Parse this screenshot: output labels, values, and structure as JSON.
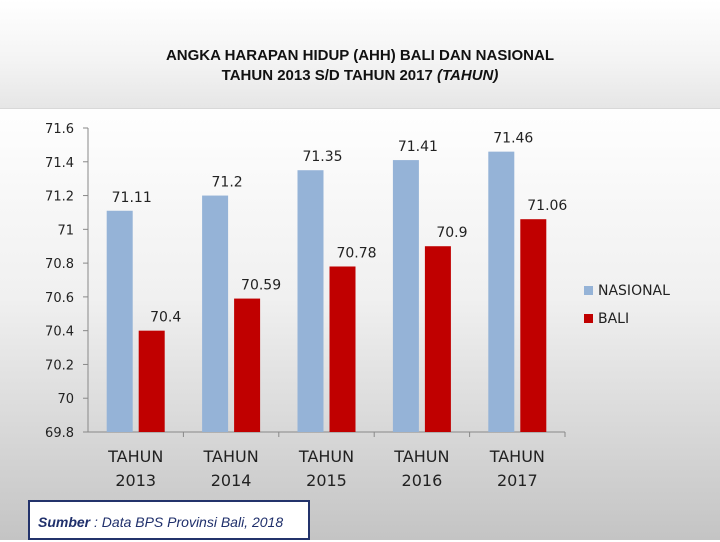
{
  "title": {
    "line1": "ANGKA HARAPAN HIDUP (AHH) BALI DAN NASIONAL",
    "line2_prefix": "TAHUN 2013 S/D TAHUN 2017 ",
    "line2_italic": "(TAHUN)"
  },
  "source": {
    "label": "Sumber",
    "text": " : Data BPS Provinsi Bali, 2018"
  },
  "colors": {
    "nasional": "#95b3d7",
    "bali": "#c00000",
    "axis": "#888888",
    "text": "#222222"
  },
  "chart_data": {
    "type": "bar",
    "categories": [
      [
        "TAHUN",
        "2013"
      ],
      [
        "TAHUN",
        "2014"
      ],
      [
        "TAHUN",
        "2015"
      ],
      [
        "TAHUN",
        "2016"
      ],
      [
        "TAHUN",
        "2017"
      ]
    ],
    "series": [
      {
        "name": "NASIONAL",
        "values": [
          71.11,
          71.2,
          71.35,
          71.41,
          71.46
        ],
        "labels": [
          "71.11",
          "71.2",
          "71.35",
          "71.41",
          "71.46"
        ]
      },
      {
        "name": "BALI",
        "values": [
          70.4,
          70.59,
          70.78,
          70.9,
          71.06
        ],
        "labels": [
          "70.4",
          "70.59",
          "70.78",
          "70.9",
          "71.06"
        ]
      }
    ],
    "ylim": [
      69.8,
      71.6
    ],
    "yticks": [
      71.6,
      71.4,
      71.2,
      71,
      70.8,
      70.6,
      70.4,
      70.2,
      70,
      69.8
    ],
    "ytick_labels": [
      "71.6",
      "71.4",
      "71.2",
      "71",
      "70.8",
      "70.6",
      "70.4",
      "70.2",
      "70",
      "69.8"
    ],
    "legend": "right",
    "grid": false
  }
}
